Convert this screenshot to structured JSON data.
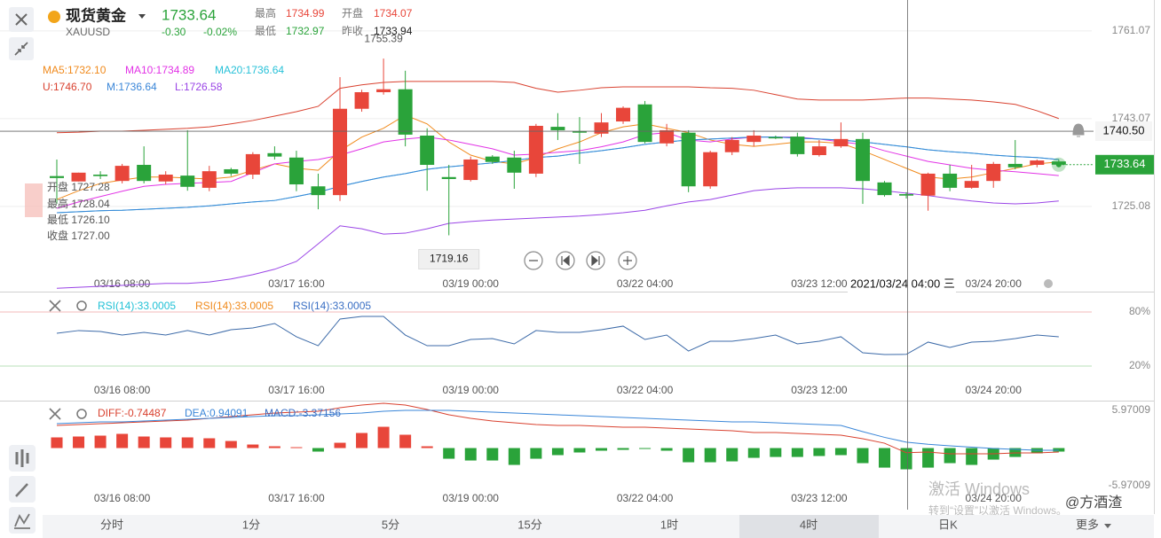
{
  "header": {
    "title": "现货黄金",
    "symbol": "XAUUSD",
    "price": "1733.64",
    "change": "-0.30",
    "change_pct": "-0.02%",
    "quote": [
      [
        "最高",
        "1734.99"
      ],
      [
        "开盘",
        "1734.07"
      ],
      [
        "最低",
        "1732.97"
      ],
      [
        "昨收",
        "1733.94"
      ]
    ]
  },
  "tooltip": [
    "开盘 1727.28",
    "最高 1728.04",
    "最低 1726.10",
    "收盘 1727.00"
  ],
  "toolbar": {
    "tabs": [
      "分时",
      "1分",
      "5分",
      "15分",
      "1时",
      "4时",
      "日K",
      "更多"
    ],
    "selected": "4时"
  },
  "watermark": [
    "激活 Windows",
    "转到“设置”以激活 Windows。"
  ],
  "signature": "@方酒渣",
  "chart_data": [
    {
      "type": "candlestick",
      "categories": [
        null,
        null,
        null,
        "03/16 08:00",
        null,
        null,
        null,
        null,
        null,
        null,
        null,
        "03/17 16:00",
        null,
        null,
        null,
        null,
        null,
        null,
        null,
        "03/19 00:00",
        null,
        null,
        null,
        null,
        null,
        null,
        null,
        "03/22 04:00",
        null,
        null,
        null,
        null,
        null,
        null,
        null,
        "03/23 12:00",
        null,
        null,
        null,
        null,
        null,
        null,
        null,
        "03/24 20:00",
        null,
        null,
        null
      ],
      "up_color": "#e8463a",
      "down_color": "#2aa33a",
      "ohlc": [
        [
          1731.3,
          1730.9,
          1734.7,
          1725.6
        ],
        [
          1730.2,
          1732.0,
          1732.0,
          1730.2
        ],
        [
          1731.6,
          1731.3,
          1732.3,
          1730.7
        ],
        [
          1730.3,
          1733.4,
          1733.8,
          1729.8
        ],
        [
          1733.6,
          1730.3,
          1737.4,
          1729.8
        ],
        [
          1730.2,
          1731.6,
          1732.3,
          1729.6
        ],
        [
          1731.4,
          1729.1,
          1740.7,
          1728.3
        ],
        [
          1728.9,
          1732.3,
          1733.4,
          1728.2
        ],
        [
          1732.7,
          1731.8,
          1733.0,
          1731.3
        ],
        [
          1731.6,
          1735.8,
          1736.2,
          1730.7
        ],
        [
          1736.0,
          1735.3,
          1737.4,
          1734.7
        ],
        [
          1735.1,
          1729.6,
          1736.5,
          1728.2
        ],
        [
          1729.2,
          1727.4,
          1731.8,
          1724.5
        ],
        [
          1727.4,
          1745.1,
          1751.6,
          1726.2
        ],
        [
          1745.1,
          1748.5,
          1749.0,
          1744.5
        ],
        [
          1748.5,
          1749.1,
          1755.39,
          1748.0
        ],
        [
          1749.1,
          1739.8,
          1752.9,
          1737.4
        ],
        [
          1739.6,
          1733.6,
          1741.1,
          1728.3
        ],
        [
          1731.1,
          1730.7,
          1733.6,
          1719.16
        ],
        [
          1730.5,
          1734.7,
          1735.3,
          1730.2
        ],
        [
          1735.3,
          1734.2,
          1735.6,
          1733.8
        ],
        [
          1735.1,
          1732.0,
          1736.5,
          1728.7
        ],
        [
          1731.8,
          1741.6,
          1742.0,
          1731.1
        ],
        [
          1741.4,
          1740.7,
          1744.2,
          1738.7
        ],
        [
          1740.5,
          1740.2,
          1743.4,
          1733.8
        ],
        [
          1740.0,
          1742.3,
          1744.2,
          1739.3
        ],
        [
          1742.5,
          1745.3,
          1745.6,
          1742.0
        ],
        [
          1746.0,
          1738.3,
          1746.7,
          1738.0
        ],
        [
          1738.0,
          1740.7,
          1742.0,
          1737.4
        ],
        [
          1740.2,
          1729.2,
          1740.7,
          1728.0
        ],
        [
          1729.2,
          1736.2,
          1736.5,
          1728.7
        ],
        [
          1736.2,
          1738.7,
          1739.3,
          1735.6
        ],
        [
          1738.3,
          1739.6,
          1740.7,
          1737.4
        ],
        [
          1739.3,
          1739.1,
          1739.6,
          1738.9
        ],
        [
          1739.4,
          1735.8,
          1740.2,
          1735.3
        ],
        [
          1735.6,
          1737.4,
          1738.7,
          1735.3
        ],
        [
          1737.4,
          1738.9,
          1742.3,
          1737.1
        ],
        [
          1738.9,
          1730.3,
          1740.2,
          1725.6
        ],
        [
          1730.0,
          1727.4,
          1730.3,
          1727.1
        ],
        [
          1727.6,
          1727.3,
          1728.0,
          1726.7
        ],
        [
          1727.3,
          1731.8,
          1732.0,
          1724.2
        ],
        [
          1731.8,
          1728.9,
          1733.6,
          1728.2
        ],
        [
          1728.9,
          1730.3,
          1733.6,
          1728.7
        ],
        [
          1730.3,
          1733.8,
          1734.2,
          1728.9
        ],
        [
          1733.8,
          1733.1,
          1738.7,
          1732.7
        ],
        [
          1733.6,
          1734.5,
          1734.7,
          1733.1
        ],
        [
          1734.3,
          1733.64,
          1734.7,
          1733.4
        ]
      ],
      "series": [
        {
          "name": "MA5:1732.10",
          "color": "#f08a1c",
          "values": [
            1726.5,
            1728.3,
            1729.8,
            1730.5,
            1731.1,
            1731.1,
            1730.9,
            1730.7,
            1731.1,
            1732.5,
            1733.8,
            1732.9,
            1732.5,
            1736.5,
            1739.3,
            1741.1,
            1743.8,
            1742.0,
            1738.3,
            1735.6,
            1734.3,
            1733.8,
            1735.1,
            1736.9,
            1738.3,
            1740.2,
            1741.4,
            1742.0,
            1741.1,
            1740.2,
            1738.7,
            1737.8,
            1737.4,
            1737.8,
            1738.3,
            1738.3,
            1738.0,
            1736.5,
            1734.7,
            1732.9,
            1731.1,
            1730.7,
            1731.1,
            1732.0,
            1732.9,
            1733.8,
            1734.2
          ]
        },
        {
          "name": "MA10:1734.89",
          "color": "#e233e6",
          "values": [
            1724.7,
            1726.0,
            1727.1,
            1728.2,
            1729.2,
            1729.6,
            1729.8,
            1730.0,
            1730.2,
            1732.0,
            1733.8,
            1734.3,
            1734.7,
            1735.6,
            1736.9,
            1738.3,
            1738.9,
            1739.3,
            1738.7,
            1737.8,
            1736.9,
            1735.6,
            1735.8,
            1736.2,
            1736.5,
            1737.3,
            1738.3,
            1739.8,
            1740.2,
            1738.7,
            1738.3,
            1738.9,
            1739.3,
            1739.3,
            1739.3,
            1738.9,
            1738.3,
            1737.8,
            1736.5,
            1735.4,
            1734.3,
            1733.6,
            1732.9,
            1732.5,
            1732.2,
            1731.8,
            1731.4
          ]
        },
        {
          "name": "MA20:1736.64",
          "color": "#27c1d8",
          "values": [
            1723.8,
            1724.0,
            1724.2,
            1724.3,
            1724.5,
            1724.7,
            1724.9,
            1725.2,
            1725.6,
            1726.0,
            1726.3,
            1727.1,
            1728.0,
            1729.2,
            1730.2,
            1731.1,
            1731.8,
            1732.7,
            1733.2,
            1733.6,
            1734.0,
            1734.5,
            1735.1,
            1735.4,
            1736.0,
            1736.5,
            1737.1,
            1737.8,
            1738.3,
            1738.7,
            1738.9,
            1739.1,
            1739.3,
            1739.3,
            1739.1,
            1738.9,
            1738.7,
            1738.3,
            1737.8,
            1737.3,
            1736.7,
            1736.3,
            1736.0,
            1735.6,
            1735.3,
            1735.1,
            1734.7
          ]
        },
        {
          "name": "U:1746.70",
          "color": "#d9412f",
          "values": [
            1740.2,
            1740.3,
            1740.5,
            1740.5,
            1740.7,
            1740.9,
            1741.1,
            1741.4,
            1742.0,
            1742.7,
            1743.6,
            1744.5,
            1745.6,
            1749.3,
            1750.0,
            1750.5,
            1750.7,
            1750.7,
            1750.7,
            1750.7,
            1750.7,
            1750.5,
            1749.3,
            1748.5,
            1748.9,
            1749.4,
            1749.6,
            1749.6,
            1749.6,
            1749.6,
            1749.4,
            1749.3,
            1748.9,
            1748.0,
            1747.1,
            1746.9,
            1746.9,
            1746.9,
            1747.1,
            1747.3,
            1747.3,
            1747.1,
            1746.9,
            1746.5,
            1746.0,
            1744.7,
            1743.1
          ]
        },
        {
          "name": "M:1736.64",
          "color": "#3a86d8",
          "values": [
            1723.8,
            1724.0,
            1724.2,
            1724.3,
            1724.5,
            1724.7,
            1724.9,
            1725.2,
            1725.6,
            1726.0,
            1726.3,
            1727.1,
            1728.0,
            1729.2,
            1730.2,
            1731.1,
            1731.8,
            1732.7,
            1733.2,
            1733.6,
            1734.0,
            1734.5,
            1735.1,
            1735.4,
            1736.0,
            1736.5,
            1737.1,
            1737.8,
            1738.3,
            1738.7,
            1738.9,
            1739.1,
            1739.3,
            1739.3,
            1739.1,
            1738.9,
            1738.7,
            1738.3,
            1737.8,
            1737.3,
            1736.7,
            1736.3,
            1736.0,
            1735.6,
            1735.3,
            1735.1,
            1734.7
          ]
        },
        {
          "name": "L:1726.58",
          "color": "#9a44e6",
          "values": [
            1708.3,
            1708.5,
            1708.7,
            1708.9,
            1709.1,
            1709.3,
            1709.3,
            1709.6,
            1710.2,
            1711.1,
            1712.2,
            1713.8,
            1717.4,
            1721.1,
            1720.5,
            1719.4,
            1719.6,
            1720.5,
            1721.6,
            1722.0,
            1722.3,
            1722.5,
            1722.7,
            1722.9,
            1723.1,
            1723.4,
            1723.8,
            1724.3,
            1725.2,
            1726.0,
            1726.5,
            1727.4,
            1728.3,
            1728.7,
            1728.9,
            1728.9,
            1728.9,
            1728.7,
            1728.3,
            1727.8,
            1727.3,
            1726.7,
            1726.2,
            1725.8,
            1725.6,
            1725.8,
            1726.2
          ]
        }
      ],
      "ylim": [
        1707.8,
        1767.4
      ],
      "yticks": [
        1761.07,
        1743.07,
        1725.08
      ],
      "grid": true,
      "last_price": 1733.64,
      "crosshair_price": {
        "value": 1740.5,
        "label": "1740.50"
      },
      "crosshair_time": "2021/03/24 04:00 三"
    },
    {
      "type": "line",
      "categories": [
        null,
        null,
        null,
        "03/16 08:00",
        null,
        null,
        null,
        null,
        null,
        null,
        null,
        "03/17 16:00",
        null,
        null,
        null,
        null,
        null,
        null,
        null,
        "03/19 00:00",
        null,
        null,
        null,
        null,
        null,
        null,
        null,
        "03/22 04:00",
        null,
        null,
        null,
        null,
        null,
        null,
        null,
        "03/23 12:00",
        null,
        null,
        null,
        null,
        null,
        null,
        null,
        "03/24 20:00",
        null,
        null,
        null
      ],
      "legend": [
        {
          "label": "RSI(14):33.0005",
          "color": "#22c1d6"
        },
        {
          "label": "RSI(14):33.0005",
          "color": "#f08a1c"
        },
        {
          "label": "RSI(14):33.0005",
          "color": "#3a6fc4"
        }
      ],
      "series": [
        {
          "color": "#3c6aa8",
          "values": [
            56.4,
            59.4,
            58.4,
            54.4,
            57.4,
            54.4,
            59.4,
            54.4,
            60.3,
            62.3,
            67.2,
            52.5,
            42.6,
            72.1,
            75.1,
            75.1,
            54.4,
            42.6,
            42.6,
            49.5,
            50.5,
            44.6,
            59.4,
            57.4,
            57.4,
            60.3,
            64.3,
            49.5,
            54.4,
            36.7,
            47.5,
            47.5,
            50.5,
            54.4,
            44.6,
            47.5,
            52.5,
            34.8,
            32.8,
            33.0,
            46.6,
            40.7,
            46.6,
            47.5,
            50.5,
            54.4,
            52.5
          ]
        }
      ],
      "ylim": [
        -18.3,
        101.6
      ],
      "yticks": [
        {
          "value": 80,
          "label": "80%"
        },
        {
          "value": 20,
          "label": "20%"
        }
      ],
      "tick_colors": [
        "#f3b8b8",
        "#b8e2b8"
      ],
      "grid": true
    },
    {
      "type": "macd",
      "categories": [
        null,
        null,
        null,
        "03/16 08:00",
        null,
        null,
        null,
        null,
        null,
        null,
        null,
        "03/17 16:00",
        null,
        null,
        null,
        null,
        null,
        null,
        null,
        "03/19 00:00",
        null,
        null,
        null,
        null,
        null,
        null,
        null,
        "03/22 04:00",
        null,
        null,
        null,
        null,
        null,
        null,
        null,
        "03/23 12:00",
        null,
        null,
        null,
        null,
        null,
        null,
        null,
        "03/24 20:00",
        null,
        null,
        null
      ],
      "histogram": {
        "name": "MACD:-3.37156",
        "color": "#3a6fc4",
        "up_color": "#e8463a",
        "down_color": "#2aa33a",
        "values": [
          1.69,
          1.83,
          1.97,
          2.25,
          1.83,
          1.69,
          1.69,
          1.55,
          1.12,
          0.56,
          0.28,
          0.14,
          -0.56,
          0.84,
          2.39,
          3.37,
          2.11,
          0.28,
          -1.69,
          -1.97,
          -1.97,
          -2.67,
          -1.69,
          -1.12,
          -0.7,
          -0.42,
          -0.28,
          -0.14,
          -0.42,
          -2.25,
          -2.25,
          -2.11,
          -1.55,
          -1.41,
          -1.41,
          -1.26,
          -1.12,
          -2.39,
          -3.1,
          -3.37,
          -3.1,
          -2.39,
          -2.67,
          -1.83,
          -1.41,
          -0.84,
          -0.56
        ]
      },
      "series": [
        {
          "name": "DIFF:-0.74487",
          "color": "#d9412f",
          "values": [
            3.58,
            3.72,
            3.86,
            4.0,
            4.14,
            4.29,
            4.43,
            4.71,
            4.99,
            5.27,
            5.55,
            5.69,
            5.83,
            6.39,
            6.81,
            7.1,
            6.81,
            6.11,
            5.27,
            4.71,
            4.29,
            4.0,
            3.72,
            3.58,
            3.58,
            3.44,
            3.3,
            3.3,
            3.16,
            3.02,
            2.88,
            2.74,
            2.46,
            2.46,
            2.32,
            2.18,
            2.04,
            1.48,
            0.77,
            -0.74,
            -0.63,
            -0.91,
            -0.91,
            -0.91,
            -0.77,
            -0.77,
            -0.63
          ]
        },
        {
          "name": "DEA:0.94091",
          "color": "#3a86d8",
          "values": [
            3.86,
            4.0,
            4.14,
            4.14,
            4.29,
            4.43,
            4.57,
            4.71,
            4.85,
            4.99,
            5.13,
            5.13,
            5.27,
            5.41,
            5.55,
            5.83,
            5.97,
            5.97,
            5.97,
            5.83,
            5.69,
            5.55,
            5.41,
            5.27,
            5.13,
            4.99,
            4.85,
            4.71,
            4.57,
            4.43,
            4.29,
            4.14,
            4.14,
            4.0,
            3.86,
            3.72,
            3.58,
            2.6,
            1.7,
            0.94,
            0.6,
            0.35,
            0.15,
            -0.07,
            -0.21,
            -0.35,
            -0.35
          ]
        }
      ],
      "ylim": [
        -9.76,
        7.52
      ],
      "yticks": [
        5.97009,
        -5.97009
      ],
      "grid": false
    }
  ]
}
